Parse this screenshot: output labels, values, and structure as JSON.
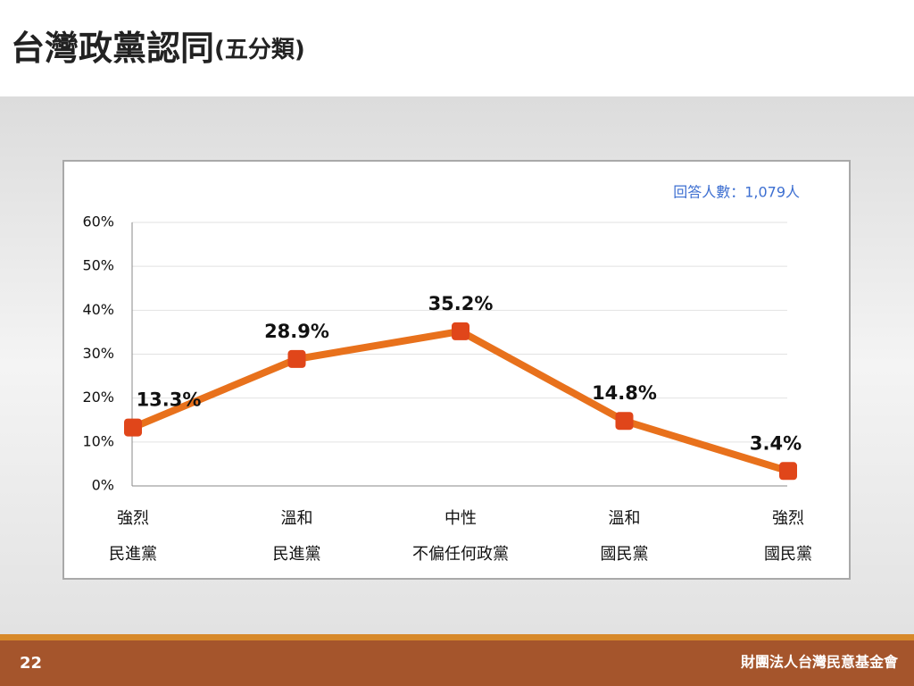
{
  "chart_data": {
    "type": "line",
    "title": "台灣政黨認同",
    "subtitle": "(五分類)",
    "annotation": "回答人數：1,079人",
    "categories": [
      [
        "強烈",
        "民進黨"
      ],
      [
        "溫和",
        "民進黨"
      ],
      [
        "中性",
        "不偏任何政黨"
      ],
      [
        "溫和",
        "國民黨"
      ],
      [
        "強烈",
        "國民黨"
      ]
    ],
    "values": [
      13.3,
      28.9,
      35.2,
      14.8,
      3.4
    ],
    "value_labels": [
      "13.3%",
      "28.9%",
      "35.2%",
      "14.8%",
      "3.4%"
    ],
    "color": "#e8711c",
    "marker_color": "#e0461a",
    "ylim": [
      0,
      60
    ],
    "yticks": [
      {
        "value": 0,
        "label": "0%"
      },
      {
        "value": 10,
        "label": "10%"
      },
      {
        "value": 20,
        "label": "20%"
      },
      {
        "value": 30,
        "label": "30%"
      },
      {
        "value": 40,
        "label": "40%"
      },
      {
        "value": 50,
        "label": "50%"
      },
      {
        "value": 60,
        "label": "60%"
      }
    ],
    "grid": true
  },
  "footer": {
    "page": "22",
    "organization": "財團法人台灣民意基金會"
  }
}
